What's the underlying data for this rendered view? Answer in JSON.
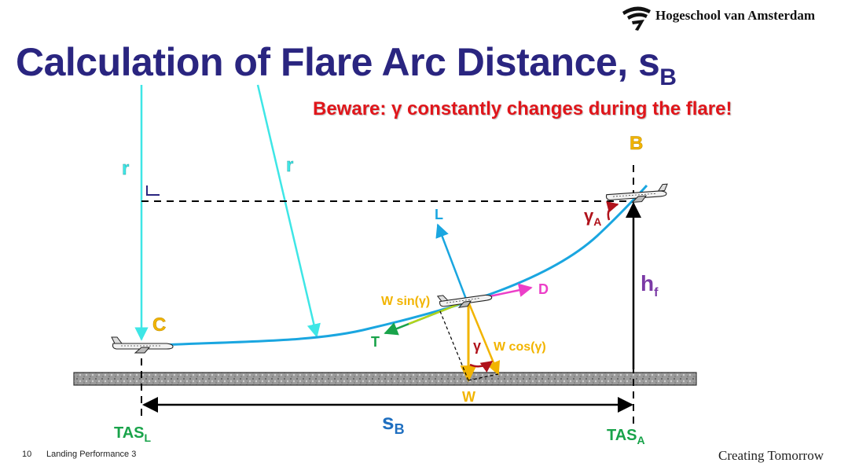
{
  "header": {
    "title_main": "Calculation of Flare Arc Distance, s",
    "title_sub": "B",
    "warning": "Beware: γ constantly changes during the flare!"
  },
  "branding": {
    "institution": "Hogeschool van Amsterdam",
    "tagline": "Creating Tomorrow"
  },
  "footer": {
    "slide_number": "10",
    "course": "Landing Performance 3"
  },
  "diagram": {
    "points": {
      "flare_start": "C",
      "flare_end": "B"
    },
    "radius_label_left": "r",
    "radius_label_right": "r",
    "right_angle_mark": "L",
    "lift": "L",
    "drag": "D",
    "thrust": "T",
    "weight": "W",
    "weight_parallel": "W sin(γ)",
    "weight_perpendicular": "W cos(γ)",
    "gamma": "γ",
    "gamma_at_A": {
      "base": "γ",
      "sub": "A"
    },
    "screen_height": {
      "base": "h",
      "sub": "f"
    },
    "distance": {
      "base": "s",
      "sub": "B"
    },
    "tas_left": {
      "base": "TAS",
      "sub": "L"
    },
    "tas_right": {
      "base": "TAS",
      "sub": "A"
    }
  },
  "colors": {
    "title": "#2a2580",
    "warning": "#e0161b",
    "flight_path": "#1aa6e0",
    "radius": "#3ee6e6",
    "point_labels": "#f2b400",
    "weight": "#f2b400",
    "thrust": "#19a34a",
    "drag": "#ec3fc8",
    "gamma": "#b0121b",
    "height": "#7b3aa6"
  }
}
